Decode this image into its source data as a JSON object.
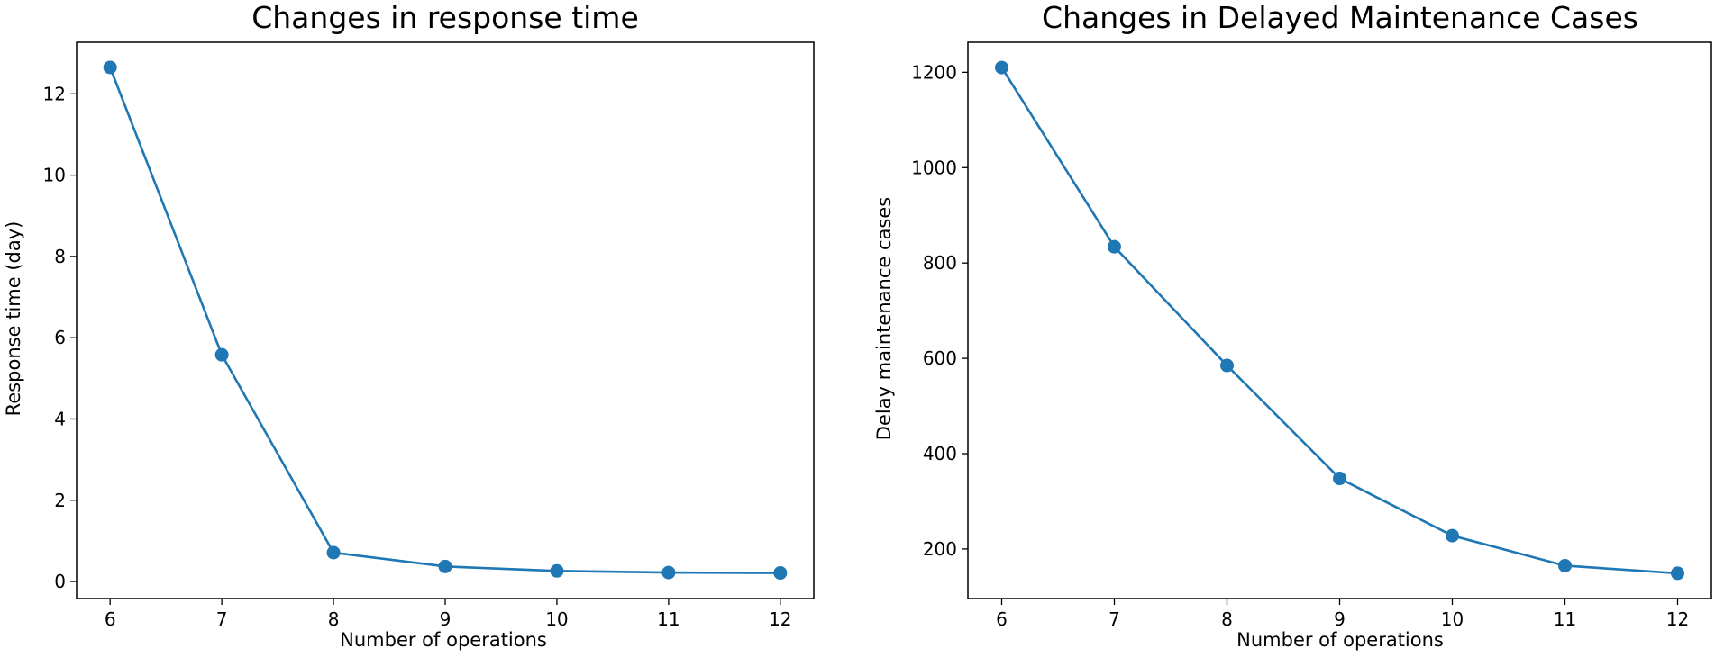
{
  "chart_data": [
    {
      "type": "line",
      "title": "Changes in response time",
      "xlabel": "Number of operations",
      "ylabel": "Response time (day)",
      "x": [
        6,
        7,
        8,
        9,
        10,
        11,
        12
      ],
      "series": [
        {
          "values": [
            12.65,
            5.58,
            0.71,
            0.37,
            0.26,
            0.22,
            0.21
          ]
        }
      ],
      "xlim": [
        5.7,
        12.3
      ],
      "ylim": [
        -0.42,
        13.27
      ],
      "xticks": [
        6,
        7,
        8,
        9,
        10,
        11,
        12
      ],
      "yticks": [
        0,
        2,
        4,
        6,
        8,
        10,
        12
      ],
      "grid": false,
      "marker": "circle",
      "color": "#1f77b4"
    },
    {
      "type": "line",
      "title": "Changes in Delayed Maintenance Cases",
      "xlabel": "Number of operations",
      "ylabel": "Delay maintenance cases",
      "x": [
        6,
        7,
        8,
        9,
        10,
        11,
        12
      ],
      "series": [
        {
          "values": [
            1210,
            834,
            585,
            348,
            228,
            165,
            149
          ]
        }
      ],
      "xlim": [
        5.7,
        12.3
      ],
      "ylim": [
        96,
        1263
      ],
      "xticks": [
        6,
        7,
        8,
        9,
        10,
        11,
        12
      ],
      "yticks": [
        200,
        400,
        600,
        800,
        1000,
        1200
      ],
      "grid": false,
      "marker": "circle",
      "color": "#1f77b4"
    }
  ]
}
